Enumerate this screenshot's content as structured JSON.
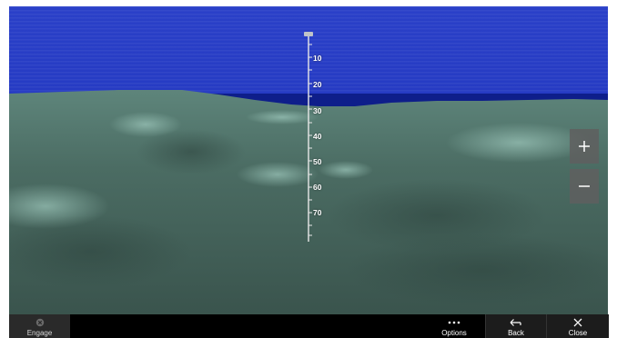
{
  "view": {
    "depth_labels": [
      "10",
      "20",
      "30",
      "40",
      "50",
      "60",
      "70"
    ]
  },
  "zoom": {
    "in_icon": "plus-icon",
    "out_icon": "minus-icon"
  },
  "toolbar": {
    "engage_label": "Engage",
    "options_label": "Options",
    "back_label": "Back",
    "close_label": "Close"
  },
  "colors": {
    "sky": "#2338c0",
    "terrain": "#4a6a62",
    "toolbar": "#000000"
  }
}
